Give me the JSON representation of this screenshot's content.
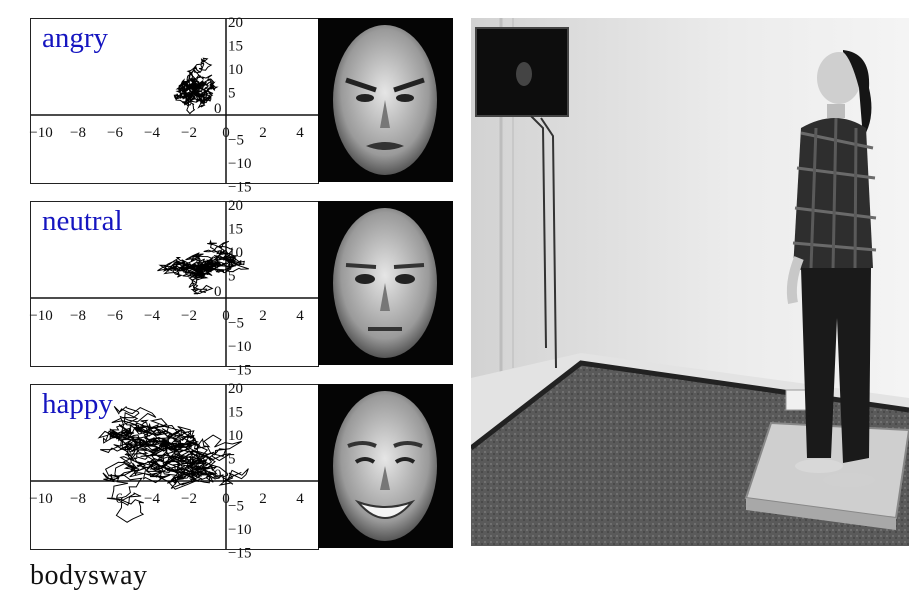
{
  "figure": {
    "caption": "bodysway"
  },
  "chart_data": [
    {
      "type": "line",
      "title": "angry",
      "xlim": [
        -10,
        4
      ],
      "ylim": [
        -15,
        20
      ],
      "xticks": [
        -10,
        -8,
        -6,
        -4,
        -2,
        0,
        2,
        4
      ],
      "yticks": [
        20,
        15,
        10,
        5,
        0,
        -5,
        -10,
        -15
      ],
      "x_tick_labels": [
        "−10",
        "−8",
        "−6",
        "−4",
        "−2",
        "0",
        "2",
        "4"
      ],
      "y_tick_labels": [
        "20",
        "15",
        "10",
        "5",
        "0",
        "−5",
        "−10",
        "−15"
      ],
      "trace_center": [
        -1.5,
        6
      ],
      "trace_spread": [
        1.2,
        3.5
      ],
      "color": "#000000"
    },
    {
      "type": "line",
      "title": "neutral",
      "xlim": [
        -10,
        4
      ],
      "ylim": [
        -15,
        20
      ],
      "xticks": [
        -10,
        -8,
        -6,
        -4,
        -2,
        0,
        2,
        4
      ],
      "yticks": [
        20,
        15,
        10,
        5,
        0,
        -5,
        -10,
        -15
      ],
      "x_tick_labels": [
        "−10",
        "−8",
        "−6",
        "−4",
        "−2",
        "0",
        "2",
        "4"
      ],
      "y_tick_labels": [
        "20",
        "15",
        "10",
        "5",
        "0",
        "−5",
        "−10",
        "−15"
      ],
      "trace_center": [
        -1.5,
        7
      ],
      "trace_spread": [
        2.2,
        3.5
      ],
      "color": "#000000"
    },
    {
      "type": "line",
      "title": "happy",
      "xlim": [
        -10,
        4
      ],
      "ylim": [
        -15,
        20
      ],
      "xticks": [
        -10,
        -8,
        -6,
        -4,
        -2,
        0,
        2,
        4
      ],
      "yticks": [
        20,
        15,
        10,
        5,
        0,
        -5,
        -10,
        -15
      ],
      "x_tick_labels": [
        "−10",
        "−8",
        "−6",
        "−4",
        "−2",
        "0",
        "2",
        "4"
      ],
      "y_tick_labels": [
        "20",
        "15",
        "10",
        "5",
        "0",
        "−5",
        "−10",
        "−15"
      ],
      "trace_center": [
        -3,
        5
      ],
      "trace_spread": [
        4,
        7
      ],
      "color": "#000000"
    }
  ],
  "photo": {
    "description_icon": "experiment-photo-icon"
  }
}
